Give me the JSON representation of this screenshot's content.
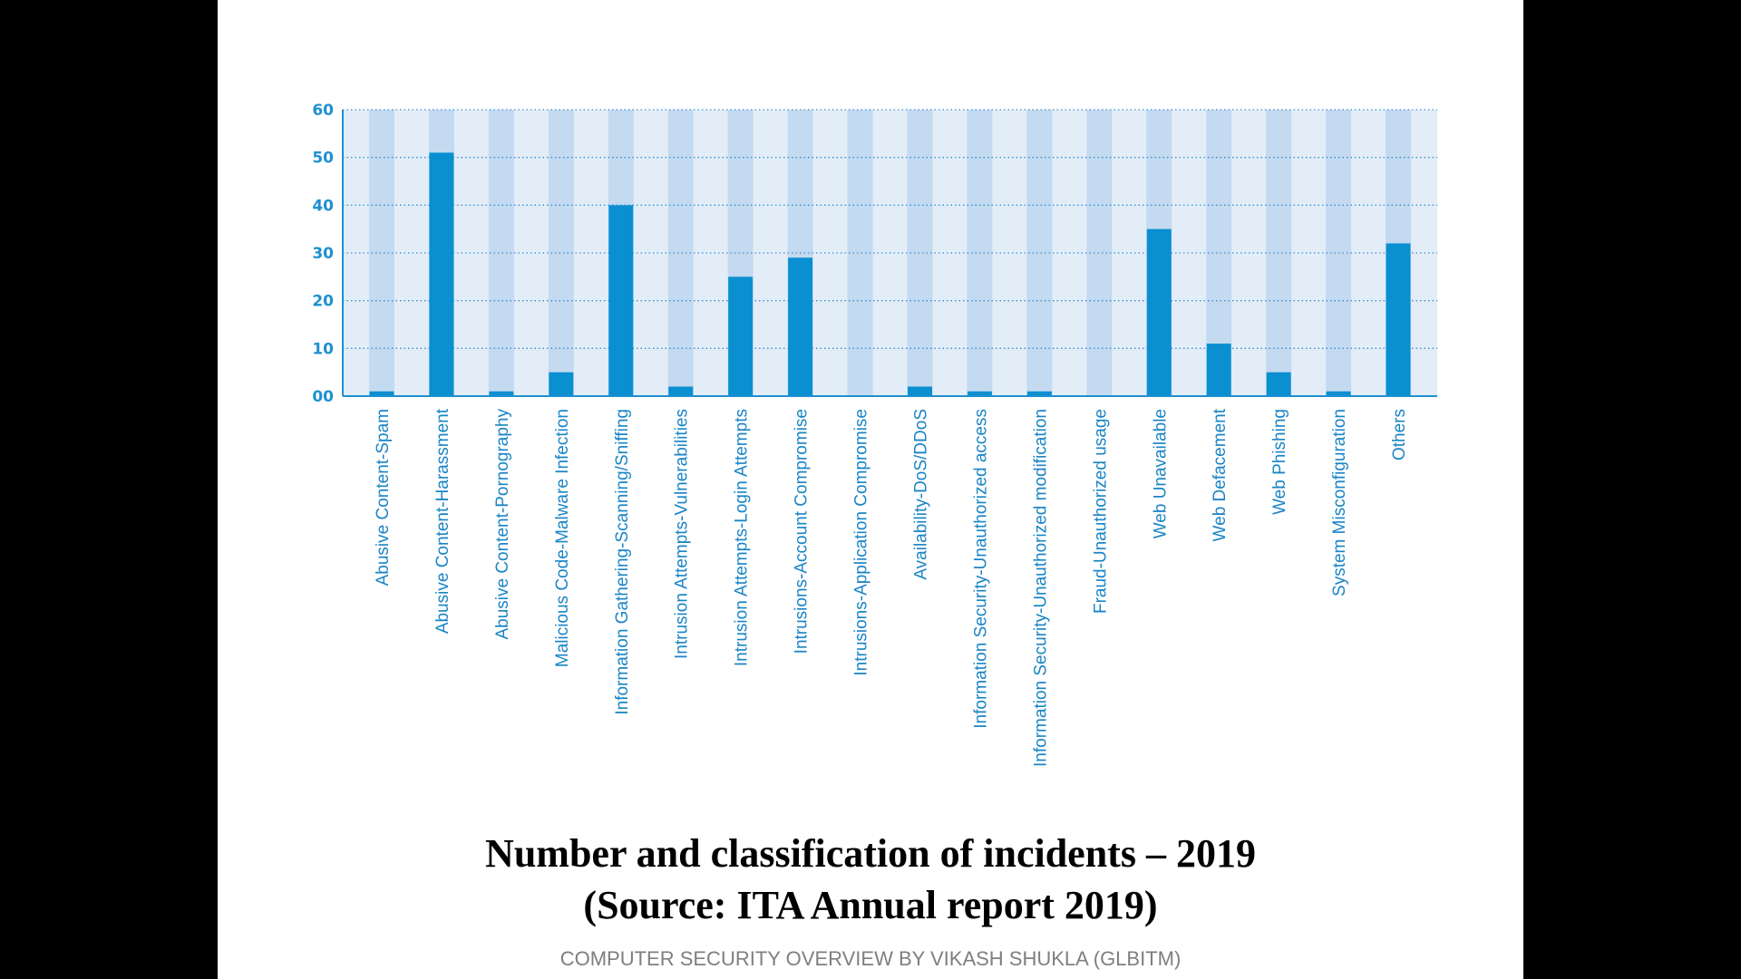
{
  "chart_data": {
    "type": "bar",
    "categories": [
      "Abusive Content-Spam",
      "Abusive Content-Harassment",
      "Abusive Content-Pornography",
      "Malicious Code-Malware Infection",
      "Information Gathering-Scanning/Sniffing",
      "Intrusion Attempts-Vulnerabilities",
      "Intrusion Attempts-Login Attempts",
      "Intrusions-Account Compromise",
      "Intrusions-Application Compromise",
      "Availability-DoS/DDoS",
      "Information Security-Unauthorized access",
      "Information Security-Unauthorized modification",
      "Fraud-Unauthorized usage",
      "Web Unavailable",
      "Web Defacement",
      "Web Phishing",
      "System Misconfiguration",
      "Others"
    ],
    "values": [
      1,
      51,
      1,
      5,
      40,
      2,
      25,
      29,
      0,
      2,
      1,
      1,
      0,
      35,
      11,
      5,
      1,
      32
    ],
    "ylim": [
      0,
      60
    ],
    "yticks": [
      "00",
      "10",
      "20",
      "30",
      "40",
      "50",
      "60"
    ],
    "ytick_values": [
      0,
      10,
      20,
      30,
      40,
      50,
      60
    ],
    "grid": true,
    "title": "",
    "xlabel": "",
    "ylabel": "",
    "colors": {
      "bar": "#0a8fd1",
      "column_band": "#c3daf0",
      "plot_background": "#e3edf8",
      "grid_line": "#3b8fd0",
      "axis_line": "#1e90d0",
      "tick_label": "#1e90d0",
      "category_label": "#1a85c5"
    }
  },
  "caption": {
    "line1": "Number and classification of incidents – 2019",
    "line2": "(Source: ITA Annual report 2019)"
  },
  "footer": {
    "text": "COMPUTER SECURITY OVERVIEW BY VIKASH SHUKLA (GLBITM)"
  }
}
